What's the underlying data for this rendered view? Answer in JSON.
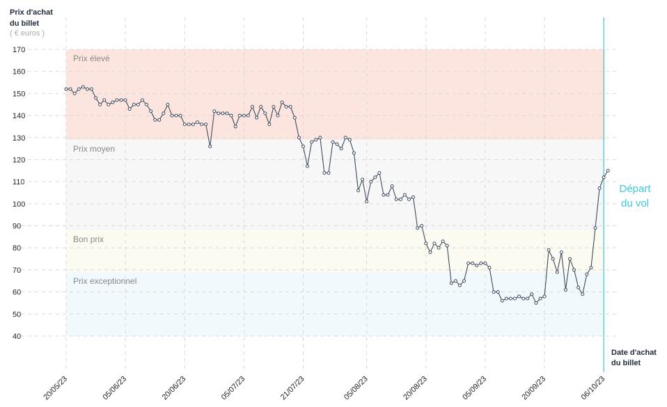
{
  "chart_data": {
    "type": "line",
    "y_label_lines": [
      "Prix d'achat",
      "du billet"
    ],
    "y_unit": "( € euros )",
    "x_label_lines": [
      "Date d'achat",
      "du billet"
    ],
    "marker_label_lines": [
      "Départ",
      "du vol"
    ],
    "marker_category": "06/10/23",
    "marker_color": "#3cc8e0",
    "categories": [
      "20/05/23",
      null,
      null,
      null,
      null,
      null,
      null,
      null,
      null,
      null,
      null,
      null,
      null,
      null,
      "05/06/23",
      null,
      null,
      null,
      null,
      null,
      null,
      null,
      null,
      null,
      null,
      null,
      null,
      null,
      "20/06/23",
      null,
      null,
      null,
      null,
      null,
      null,
      null,
      null,
      null,
      null,
      null,
      null,
      null,
      "05/07/23",
      null,
      null,
      null,
      null,
      null,
      null,
      null,
      null,
      null,
      null,
      null,
      null,
      null,
      "21/07/23",
      null,
      null,
      null,
      null,
      null,
      null,
      null,
      null,
      null,
      null,
      null,
      null,
      null,
      null,
      "05/08/23",
      null,
      null,
      null,
      null,
      null,
      null,
      null,
      null,
      null,
      null,
      null,
      null,
      null,
      "20/08/23",
      null,
      null,
      null,
      null,
      null,
      null,
      null,
      null,
      null,
      null,
      null,
      null,
      null,
      "05/09/23",
      null,
      null,
      null,
      null,
      null,
      null,
      null,
      null,
      null,
      null,
      null,
      null,
      null,
      "20/09/23",
      null,
      null,
      null,
      null,
      null,
      null,
      null,
      null,
      null,
      null,
      null,
      null,
      null,
      "06/10/23",
      null
    ],
    "series": [
      {
        "name": "Prix",
        "color": "#3d4a5c",
        "values": [
          152,
          152,
          150,
          152,
          153,
          152,
          152,
          148,
          145,
          147,
          145,
          146,
          147,
          147,
          147,
          143,
          145,
          145,
          147,
          145,
          142,
          138,
          138,
          141,
          145,
          140,
          140,
          140,
          136,
          136,
          136,
          137,
          136,
          136,
          126,
          142,
          141,
          141,
          141,
          140,
          135,
          140,
          140,
          140,
          144,
          139,
          144,
          141,
          136,
          144,
          140,
          146,
          144,
          144,
          139,
          130,
          126,
          117,
          128,
          129,
          130,
          114,
          114,
          128,
          127,
          125,
          130,
          129,
          123,
          106,
          111,
          101,
          110,
          112,
          114,
          104,
          104,
          108,
          102,
          102,
          104,
          102,
          103,
          89,
          90,
          82,
          78,
          82,
          80,
          83,
          81,
          64,
          65,
          63,
          65,
          73,
          73,
          72,
          73,
          73,
          71,
          60,
          60,
          56,
          57,
          57,
          57,
          58,
          57,
          57,
          59,
          55,
          57,
          58,
          79,
          75,
          69,
          78,
          61,
          75,
          70,
          62,
          59,
          68,
          71,
          89,
          107,
          112,
          115
        ]
      }
    ],
    "bands": [
      {
        "label": "Prix élevé",
        "from": 129,
        "to": 170,
        "color": "#fde5df"
      },
      {
        "label": "Prix moyen",
        "from": 88,
        "to": 129,
        "color": "#f7f7f7"
      },
      {
        "label": "Bon prix",
        "from": 69,
        "to": 88,
        "color": "#fbfbf1"
      },
      {
        "label": "Prix exceptionnel",
        "from": 40,
        "to": 69,
        "color": "#f1f9fc"
      }
    ],
    "ylim": [
      40,
      170
    ],
    "yticks": [
      40,
      50,
      60,
      70,
      80,
      90,
      100,
      110,
      120,
      130,
      140,
      150,
      160,
      170
    ],
    "grid": true
  }
}
